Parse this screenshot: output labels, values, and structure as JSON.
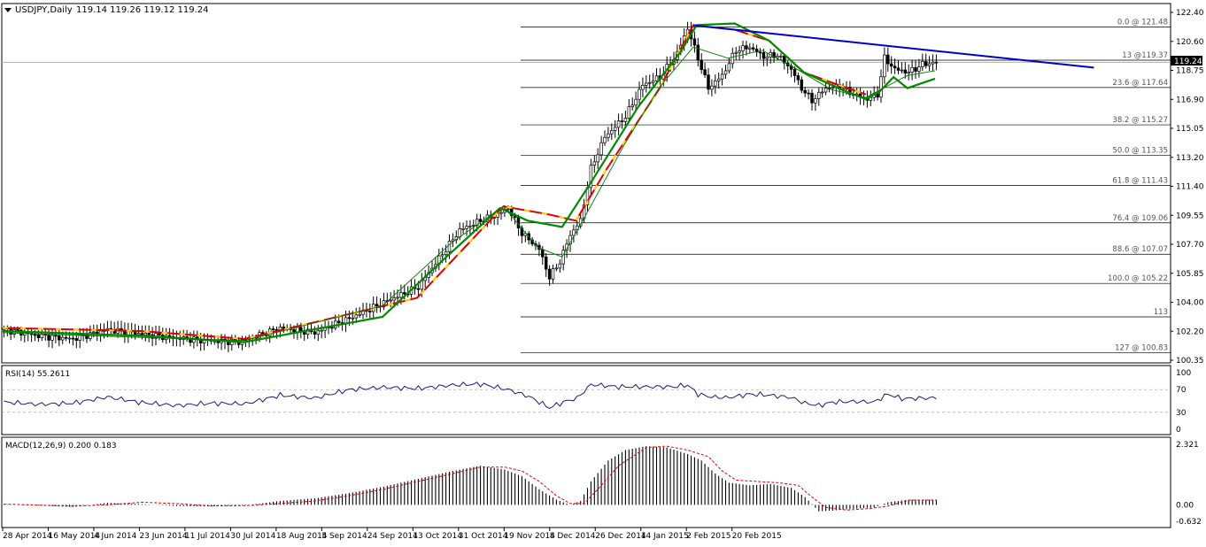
{
  "header": {
    "symbol": "USDJPY,Daily",
    "ohlc": "119.14 119.26 119.12 119.24",
    "current_price": "119.24"
  },
  "colors": {
    "bull_candle": "#ffffff",
    "bear_candle": "#000000",
    "ma_fast": "#007a00",
    "ma_red": "#e00000",
    "ma_green_thick": "#008a00",
    "ma_yellow": "#ffd700",
    "trendline": "#0000cc",
    "fib_line": "#000000",
    "rsi_line": "#1a1a80",
    "macd_signal": "#e00000",
    "price_tag_bg": "#000000"
  },
  "chart_data": [
    {
      "type": "candlestick",
      "panel": "price",
      "title": "USDJPY,Daily",
      "ylim": [
        100.35,
        122.4
      ],
      "y_ticks": [
        "122.40",
        "120.60",
        "118.75",
        "116.90",
        "115.05",
        "113.20",
        "111.40",
        "109.55",
        "107.70",
        "105.85",
        "104.00",
        "102.20",
        "100.35"
      ],
      "x_ticks": [
        "28 Apr 2014",
        "16 May 2014",
        "4 Jun 2014",
        "23 Jun 2014",
        "11 Jul 2014",
        "30 Jul 2014",
        "18 Aug 2014",
        "5 Sep 2014",
        "24 Sep 2014",
        "13 Oct 2014",
        "31 Oct 2014",
        "19 Nov 2014",
        "8 Dec 2014",
        "26 Dec 2014",
        "14 Jan 2015",
        "2 Feb 2015",
        "20 Feb 2015"
      ],
      "close_anchors": [
        [
          0,
          102.3
        ],
        [
          10,
          101.9
        ],
        [
          20,
          101.7
        ],
        [
          30,
          102.3
        ],
        [
          40,
          102.0
        ],
        [
          48,
          101.8
        ],
        [
          58,
          101.6
        ],
        [
          68,
          101.5
        ],
        [
          80,
          102.4
        ],
        [
          90,
          102.1
        ],
        [
          100,
          103.0
        ],
        [
          110,
          104.0
        ],
        [
          120,
          105.0
        ],
        [
          126,
          106.8
        ],
        [
          132,
          108.6
        ],
        [
          138,
          109.2
        ],
        [
          143,
          109.6
        ],
        [
          146,
          110.0
        ],
        [
          150,
          108.4
        ],
        [
          155,
          107.4
        ],
        [
          158,
          105.6
        ],
        [
          161,
          106.6
        ],
        [
          164,
          108.3
        ],
        [
          167,
          109.2
        ],
        [
          170,
          112.5
        ],
        [
          174,
          114.5
        ],
        [
          180,
          115.8
        ],
        [
          185,
          117.8
        ],
        [
          190,
          118.3
        ],
        [
          195,
          119.8
        ],
        [
          198,
          121.4
        ],
        [
          201,
          119.5
        ],
        [
          204,
          117.6
        ],
        [
          208,
          118.4
        ],
        [
          212,
          120.0
        ],
        [
          216,
          120.2
        ],
        [
          220,
          119.6
        ],
        [
          224,
          119.7
        ],
        [
          228,
          118.8
        ],
        [
          231,
          117.6
        ],
        [
          234,
          116.8
        ],
        [
          238,
          117.6
        ],
        [
          242,
          117.7
        ],
        [
          246,
          117.2
        ],
        [
          250,
          116.9
        ],
        [
          253,
          117.2
        ],
        [
          255,
          119.5
        ],
        [
          258,
          118.8
        ],
        [
          262,
          118.6
        ],
        [
          266,
          119.1
        ],
        [
          270,
          119.24
        ]
      ],
      "series": [
        {
          "kind": "ma_red_upper",
          "points": [
            [
              0,
              102.4
            ],
            [
              40,
              102.2
            ],
            [
              70,
              101.7
            ],
            [
              120,
              104.3
            ],
            [
              145,
              110.1
            ],
            [
              158,
              109.6
            ],
            [
              166,
              109.2
            ],
            [
              175,
              112.5
            ],
            [
              190,
              117.5
            ],
            [
              200,
              121.6
            ],
            [
              212,
              121.3
            ],
            [
              222,
              120.6
            ],
            [
              232,
              118.6
            ],
            [
              242,
              117.8
            ],
            [
              250,
              117.2
            ]
          ]
        },
        {
          "kind": "ma_yellow_upper",
          "points": [
            [
              0,
              102.4
            ],
            [
              40,
              102.2
            ],
            [
              70,
              101.7
            ],
            [
              120,
              104.3
            ],
            [
              145,
              110.1
            ],
            [
              158,
              109.6
            ],
            [
              166,
              109.2
            ],
            [
              175,
              112.5
            ],
            [
              190,
              117.5
            ],
            [
              200,
              121.6
            ],
            [
              212,
              121.3
            ],
            [
              222,
              120.6
            ],
            [
              232,
              118.6
            ],
            [
              242,
              117.8
            ],
            [
              250,
              117.2
            ]
          ]
        },
        {
          "kind": "ma_green_thick",
          "points": [
            [
              0,
              102.2
            ],
            [
              40,
              101.9
            ],
            [
              70,
              101.5
            ],
            [
              110,
              103.1
            ],
            [
              128,
              106.8
            ],
            [
              144,
              110.0
            ],
            [
              152,
              109.2
            ],
            [
              162,
              108.8
            ],
            [
              170,
              111.5
            ],
            [
              184,
              116.4
            ],
            [
              196,
              119.8
            ],
            [
              201,
              121.6
            ],
            [
              212,
              121.7
            ],
            [
              222,
              120.6
            ],
            [
              232,
              118.6
            ],
            [
              243,
              117.5
            ],
            [
              250,
              116.9
            ],
            [
              254,
              117.4
            ],
            [
              258,
              118.3
            ],
            [
              262,
              117.6
            ],
            [
              266,
              117.9
            ],
            [
              270,
              118.2
            ]
          ]
        },
        {
          "kind": "ma_green_thin",
          "points": [
            [
              0,
              102.1
            ],
            [
              40,
              101.8
            ],
            [
              70,
              101.6
            ],
            [
              110,
              103.8
            ],
            [
              130,
              107.8
            ],
            [
              145,
              110.1
            ],
            [
              155,
              107.5
            ],
            [
              162,
              106.9
            ],
            [
              170,
              110.0
            ],
            [
              180,
              114.0
            ],
            [
              190,
              117.6
            ],
            [
              200,
              120.2
            ],
            [
              210,
              119.5
            ],
            [
              220,
              120.0
            ],
            [
              230,
              118.8
            ],
            [
              240,
              117.5
            ],
            [
              250,
              117.0
            ],
            [
              255,
              117.6
            ],
            [
              262,
              118.4
            ],
            [
              270,
              118.7
            ]
          ]
        }
      ],
      "trendline": {
        "from": [
          200,
          121.58
        ],
        "to": [
          316,
          118.9
        ]
      },
      "fib_levels": [
        {
          "label": "0.0 @ 121.48",
          "value": 121.48
        },
        {
          "label": "13 @119.37",
          "value": 119.37
        },
        {
          "label": "23.6 @ 117.64",
          "value": 117.64
        },
        {
          "label": "38.2 @ 115.27",
          "value": 115.27
        },
        {
          "label": "50.0 @ 113.35",
          "value": 113.35
        },
        {
          "label": "61.8 @ 111.43",
          "value": 111.43
        },
        {
          "label": "76.4 @ 109.06",
          "value": 109.06
        },
        {
          "label": "88.6 @ 107.07",
          "value": 107.07
        },
        {
          "label": "100.0 @ 105.22",
          "value": 105.22
        },
        {
          "label": "113",
          "value": 103.1
        },
        {
          "label": "127 @ 100.83",
          "value": 100.83
        }
      ]
    },
    {
      "type": "line",
      "panel": "rsi",
      "title": "RSI(14) 55.2611",
      "ylim": [
        0,
        100
      ],
      "y_ticks": [
        {
          "label": "100",
          "value": 100
        },
        {
          "label": "70",
          "value": 70
        },
        {
          "label": "30",
          "value": 30
        },
        {
          "label": "0",
          "value": 0
        }
      ],
      "levels": [
        70,
        30
      ],
      "anchors": [
        [
          0,
          48
        ],
        [
          10,
          44
        ],
        [
          20,
          46
        ],
        [
          30,
          57
        ],
        [
          40,
          47
        ],
        [
          50,
          42
        ],
        [
          60,
          46
        ],
        [
          70,
          45
        ],
        [
          80,
          60
        ],
        [
          90,
          55
        ],
        [
          100,
          70
        ],
        [
          110,
          74
        ],
        [
          120,
          72
        ],
        [
          130,
          78
        ],
        [
          138,
          80
        ],
        [
          146,
          70
        ],
        [
          152,
          58
        ],
        [
          158,
          38
        ],
        [
          162,
          48
        ],
        [
          166,
          55
        ],
        [
          170,
          79
        ],
        [
          178,
          75
        ],
        [
          186,
          75
        ],
        [
          194,
          75
        ],
        [
          198,
          78
        ],
        [
          201,
          62
        ],
        [
          205,
          57
        ],
        [
          210,
          56
        ],
        [
          216,
          62
        ],
        [
          222,
          60
        ],
        [
          228,
          56
        ],
        [
          232,
          46
        ],
        [
          236,
          42
        ],
        [
          240,
          48
        ],
        [
          246,
          49
        ],
        [
          252,
          48
        ],
        [
          256,
          62
        ],
        [
          260,
          54
        ],
        [
          266,
          55
        ],
        [
          270,
          55.26
        ]
      ]
    },
    {
      "type": "bar",
      "panel": "macd",
      "title": "MACD(12,26,9) 0.200 0.183",
      "ylim": [
        -0.632,
        2.321
      ],
      "y_ticks": [
        {
          "label": "2.321",
          "value": 2.321
        },
        {
          "label": "0.00",
          "value": 0
        },
        {
          "label": "-0.632",
          "value": -0.632
        }
      ],
      "histogram_anchors": [
        [
          0,
          0.02
        ],
        [
          20,
          -0.08
        ],
        [
          30,
          0.08
        ],
        [
          40,
          0.03
        ],
        [
          50,
          -0.05
        ],
        [
          60,
          -0.06
        ],
        [
          70,
          -0.02
        ],
        [
          80,
          0.15
        ],
        [
          90,
          0.25
        ],
        [
          100,
          0.45
        ],
        [
          110,
          0.7
        ],
        [
          120,
          1.0
        ],
        [
          130,
          1.3
        ],
        [
          138,
          1.5
        ],
        [
          145,
          1.35
        ],
        [
          150,
          1.1
        ],
        [
          155,
          0.6
        ],
        [
          160,
          0.2
        ],
        [
          164,
          0.0
        ],
        [
          167,
          0.15
        ],
        [
          170,
          0.9
        ],
        [
          175,
          1.7
        ],
        [
          180,
          2.1
        ],
        [
          186,
          2.25
        ],
        [
          192,
          2.2
        ],
        [
          198,
          1.95
        ],
        [
          202,
          1.7
        ],
        [
          206,
          1.2
        ],
        [
          210,
          0.85
        ],
        [
          216,
          0.75
        ],
        [
          222,
          0.8
        ],
        [
          228,
          0.65
        ],
        [
          232,
          0.3
        ],
        [
          236,
          -0.25
        ],
        [
          240,
          -0.22
        ],
        [
          246,
          -0.15
        ],
        [
          252,
          -0.1
        ],
        [
          256,
          0.1
        ],
        [
          262,
          0.2
        ],
        [
          270,
          0.2
        ]
      ],
      "signal_anchors": [
        [
          0,
          0.03
        ],
        [
          20,
          -0.05
        ],
        [
          30,
          0.0
        ],
        [
          40,
          0.1
        ],
        [
          50,
          0.05
        ],
        [
          60,
          -0.04
        ],
        [
          70,
          -0.03
        ],
        [
          80,
          0.05
        ],
        [
          90,
          0.15
        ],
        [
          100,
          0.35
        ],
        [
          110,
          0.6
        ],
        [
          120,
          0.9
        ],
        [
          130,
          1.2
        ],
        [
          138,
          1.45
        ],
        [
          145,
          1.45
        ],
        [
          150,
          1.3
        ],
        [
          155,
          0.9
        ],
        [
          160,
          0.35
        ],
        [
          164,
          0.05
        ],
        [
          168,
          0.05
        ],
        [
          172,
          0.6
        ],
        [
          178,
          1.5
        ],
        [
          186,
          2.2
        ],
        [
          192,
          2.25
        ],
        [
          198,
          2.1
        ],
        [
          204,
          1.85
        ],
        [
          208,
          1.3
        ],
        [
          212,
          0.95
        ],
        [
          218,
          0.9
        ],
        [
          224,
          0.85
        ],
        [
          230,
          0.75
        ],
        [
          234,
          0.3
        ],
        [
          238,
          -0.1
        ],
        [
          244,
          -0.2
        ],
        [
          250,
          -0.15
        ],
        [
          256,
          -0.05
        ],
        [
          262,
          0.18
        ],
        [
          270,
          0.183
        ]
      ]
    }
  ]
}
